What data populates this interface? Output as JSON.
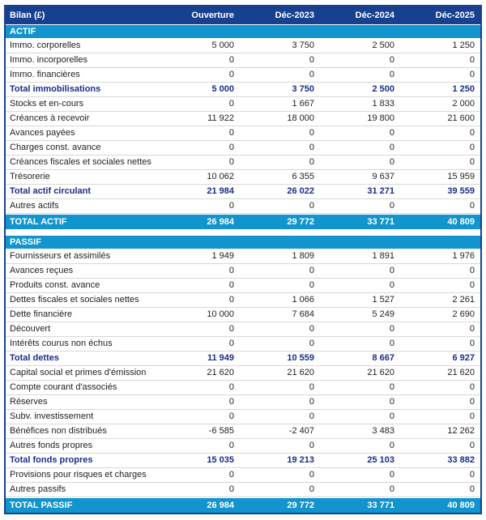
{
  "colors": {
    "navy": "#17418F",
    "cyan": "#1295CE",
    "subtotal_text": "#1A2E8C",
    "row_text": "#1F1F1F",
    "row_line": "#D8D8D8"
  },
  "header": {
    "title": "Bilan (£)",
    "columns": [
      "Ouverture",
      "Déc-2023",
      "Déc-2024",
      "Déc-2025"
    ]
  },
  "sections": [
    {
      "band": "ACTIF",
      "rows": [
        {
          "label": "Immo. corporelles",
          "values": [
            "5 000",
            "3 750",
            "2 500",
            "1 250"
          ],
          "bold": false
        },
        {
          "label": "Immo. incorporelles",
          "values": [
            "0",
            "0",
            "0",
            "0"
          ],
          "bold": false
        },
        {
          "label": "Immo. financières",
          "values": [
            "0",
            "0",
            "0",
            "0"
          ],
          "bold": false
        },
        {
          "label": "Total immobilisations",
          "values": [
            "5 000",
            "3 750",
            "2 500",
            "1 250"
          ],
          "bold": true
        },
        {
          "label": "Stocks et en-cours",
          "values": [
            "0",
            "1 667",
            "1 833",
            "2 000"
          ],
          "bold": false
        },
        {
          "label": "Créances à recevoir",
          "values": [
            "11 922",
            "18 000",
            "19 800",
            "21 600"
          ],
          "bold": false
        },
        {
          "label": "Avances payées",
          "values": [
            "0",
            "0",
            "0",
            "0"
          ],
          "bold": false
        },
        {
          "label": "Charges const. avance",
          "values": [
            "0",
            "0",
            "0",
            "0"
          ],
          "bold": false
        },
        {
          "label": "Créances fiscales et sociales nettes",
          "values": [
            "0",
            "0",
            "0",
            "0"
          ],
          "bold": false
        },
        {
          "label": "Trésorerie",
          "values": [
            "10 062",
            "6 355",
            "9 637",
            "15 959"
          ],
          "bold": false
        },
        {
          "label": "Total actif circulant",
          "values": [
            "21 984",
            "26 022",
            "31 271",
            "39 559"
          ],
          "bold": true
        },
        {
          "label": "Autres actifs",
          "values": [
            "0",
            "0",
            "0",
            "0"
          ],
          "bold": false
        }
      ],
      "total": {
        "label": "TOTAL ACTIF",
        "values": [
          "26 984",
          "29 772",
          "33 771",
          "40 809"
        ]
      }
    },
    {
      "band": "PASSIF",
      "rows": [
        {
          "label": "Fournisseurs et assimilés",
          "values": [
            "1 949",
            "1 809",
            "1 891",
            "1 976"
          ],
          "bold": false
        },
        {
          "label": "Avances reçues",
          "values": [
            "0",
            "0",
            "0",
            "0"
          ],
          "bold": false
        },
        {
          "label": "Produits const. avance",
          "values": [
            "0",
            "0",
            "0",
            "0"
          ],
          "bold": false
        },
        {
          "label": "Dettes fiscales et sociales nettes",
          "values": [
            "0",
            "1 066",
            "1 527",
            "2 261"
          ],
          "bold": false
        },
        {
          "label": "Dette financière",
          "values": [
            "10 000",
            "7 684",
            "5 249",
            "2 690"
          ],
          "bold": false
        },
        {
          "label": "Découvert",
          "values": [
            "0",
            "0",
            "0",
            "0"
          ],
          "bold": false
        },
        {
          "label": "Intérêts courus non échus",
          "values": [
            "0",
            "0",
            "0",
            "0"
          ],
          "bold": false
        },
        {
          "label": "Total dettes",
          "values": [
            "11 949",
            "10 559",
            "8 667",
            "6 927"
          ],
          "bold": true
        },
        {
          "label": "Capital social et primes d'émission",
          "values": [
            "21 620",
            "21 620",
            "21 620",
            "21 620"
          ],
          "bold": false
        },
        {
          "label": "Compte courant d'associés",
          "values": [
            "0",
            "0",
            "0",
            "0"
          ],
          "bold": false
        },
        {
          "label": "Réserves",
          "values": [
            "0",
            "0",
            "0",
            "0"
          ],
          "bold": false
        },
        {
          "label": "Subv. investissement",
          "values": [
            "0",
            "0",
            "0",
            "0"
          ],
          "bold": false
        },
        {
          "label": "Bénéfices non distribués",
          "values": [
            "-6 585",
            "-2 407",
            "3 483",
            "12 262"
          ],
          "bold": false
        },
        {
          "label": "Autres fonds propres",
          "values": [
            "0",
            "0",
            "0",
            "0"
          ],
          "bold": false
        },
        {
          "label": "Total fonds propres",
          "values": [
            "15 035",
            "19 213",
            "25 103",
            "33 882"
          ],
          "bold": true
        },
        {
          "label": "Provisions pour risques et charges",
          "values": [
            "0",
            "0",
            "0",
            "0"
          ],
          "bold": false
        },
        {
          "label": "Autres passifs",
          "values": [
            "0",
            "0",
            "0",
            "0"
          ],
          "bold": false
        }
      ],
      "total": {
        "label": "TOTAL PASSIF",
        "values": [
          "26 984",
          "29 772",
          "33 771",
          "40 809"
        ]
      }
    }
  ]
}
